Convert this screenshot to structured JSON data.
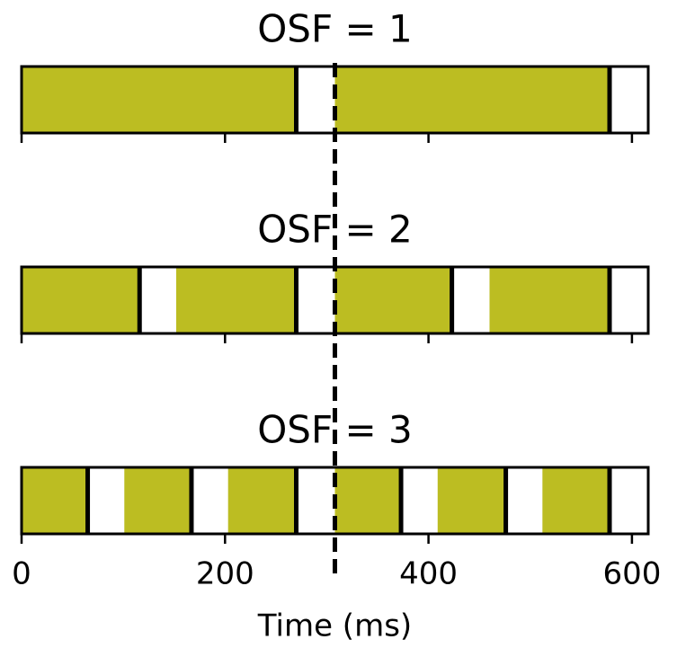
{
  "chart_data": [
    {
      "type": "timeline",
      "title": "OSF = 1",
      "color": "#bcbd22",
      "starts": [
        0,
        308
      ],
      "ends": [
        270,
        578
      ],
      "xlim": [
        0,
        616
      ],
      "xticks": [
        0,
        200,
        400,
        600
      ],
      "vline": 308
    },
    {
      "type": "timeline",
      "title": "OSF = 2",
      "color": "#bcbd22",
      "starts": [
        0,
        152,
        308,
        460
      ],
      "ends": [
        116,
        270,
        423,
        578
      ],
      "xlim": [
        0,
        616
      ],
      "xticks": [
        0,
        200,
        400,
        600
      ]
    },
    {
      "type": "timeline",
      "title": "OSF = 3",
      "color": "#bcbd22",
      "starts": [
        0,
        101,
        203,
        308,
        409,
        512
      ],
      "ends": [
        65,
        167,
        270,
        373,
        476,
        578
      ],
      "xlim": [
        0,
        616
      ],
      "xticks": [
        0,
        200,
        400,
        600
      ],
      "xlabel": "Time (ms)"
    }
  ]
}
